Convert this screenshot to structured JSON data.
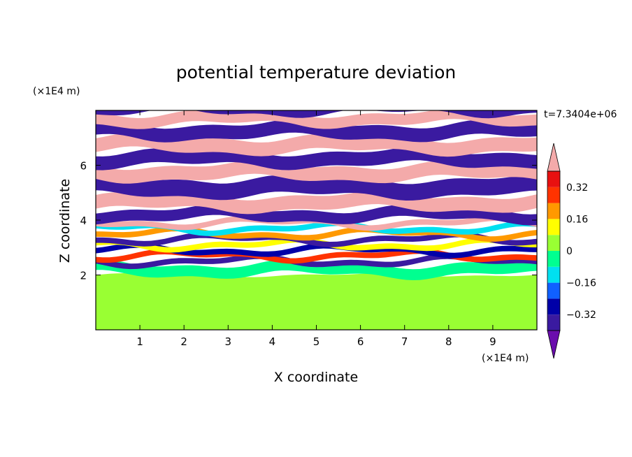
{
  "chart_data": {
    "type": "heatmap",
    "title": "potential temperature deviation",
    "xlabel": "X coordinate",
    "ylabel": "Z coordinate",
    "x_unit": "(×1E4 m)",
    "y_unit": "(×1E4 m)",
    "time_label": "t=7.3404e+06",
    "xlim": [
      0,
      10
    ],
    "ylim": [
      0,
      8
    ],
    "x_ticks": [
      1,
      2,
      3,
      4,
      5,
      6,
      7,
      8,
      9
    ],
    "y_ticks": [
      2,
      4,
      6
    ],
    "colorbar": {
      "levels": [
        -0.4,
        -0.32,
        -0.24,
        -0.16,
        -0.08,
        0,
        0.08,
        0.16,
        0.24,
        0.32,
        0.4
      ],
      "colors": [
        "#6a0dad",
        "#3a1aa0",
        "#0000a8",
        "#1060ff",
        "#00e0f0",
        "#00ff90",
        "#99ff33",
        "#ffff00",
        "#ff9900",
        "#ff3300",
        "#e81010",
        "#f4aaaa"
      ],
      "tick_values": [
        -0.32,
        -0.16,
        0,
        0.16,
        0.32
      ],
      "tick_labels": [
        "−0.32",
        "−0.16",
        "0",
        "0.16",
        "0.32"
      ],
      "extend": "both"
    },
    "bands": [
      {
        "z0": 0,
        "z1": 2.0,
        "value": 0.05
      },
      {
        "z0": 2.0,
        "z1": 2.4,
        "value": -0.02
      },
      {
        "z0": 2.4,
        "z1": 2.6,
        "value": -0.4
      },
      {
        "z0": 2.6,
        "z1": 2.8,
        "value": 0.3
      },
      {
        "z0": 2.8,
        "z1": 3.0,
        "value": -0.3
      },
      {
        "z0": 3.0,
        "z1": 3.2,
        "value": 0.1
      },
      {
        "z0": 3.2,
        "z1": 3.4,
        "value": -0.4
      },
      {
        "z0": 3.4,
        "z1": 3.6,
        "value": 0.2
      },
      {
        "z0": 3.6,
        "z1": 3.8,
        "value": -0.1
      },
      {
        "z0": 3.8,
        "z1": 4.0,
        "value": 0.4
      },
      {
        "z0": 4.0,
        "z1": 4.4,
        "value": -0.4
      },
      {
        "z0": 4.4,
        "z1": 4.9,
        "value": 0.4
      },
      {
        "z0": 4.9,
        "z1": 5.5,
        "value": -0.4
      },
      {
        "z0": 5.5,
        "z1": 6.0,
        "value": 0.4
      },
      {
        "z0": 6.0,
        "z1": 6.5,
        "value": -0.4
      },
      {
        "z0": 6.5,
        "z1": 7.0,
        "value": 0.4
      },
      {
        "z0": 7.0,
        "z1": 7.5,
        "value": -0.4
      },
      {
        "z0": 7.5,
        "z1": 7.9,
        "value": 0.4
      },
      {
        "z0": 7.9,
        "z1": 8.0,
        "value": -0.4
      }
    ]
  }
}
